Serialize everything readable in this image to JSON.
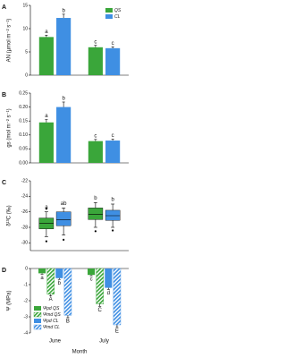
{
  "chart_data": [
    {
      "type": "bar",
      "panel": "A",
      "ylabel": "AN (µmol m⁻² s⁻¹)",
      "categories": [
        "June",
        "July"
      ],
      "ylim": [
        0,
        15
      ],
      "yticks": [
        0,
        5,
        10,
        15
      ],
      "legend": "upper right",
      "series": [
        {
          "name": "QS",
          "color": "#3aa63a",
          "values": [
            8.2,
            6.0
          ],
          "errors": [
            0.4,
            0.4
          ],
          "letters": [
            "a",
            "c"
          ]
        },
        {
          "name": "CL",
          "color": "#3f8fe3",
          "values": [
            12.3,
            5.8
          ],
          "errors": [
            0.8,
            0.3
          ],
          "letters": [
            "b",
            "c"
          ]
        }
      ]
    },
    {
      "type": "bar",
      "panel": "B",
      "ylabel": "gs (mol m⁻² s⁻¹)",
      "categories": [
        "June",
        "July"
      ],
      "ylim": [
        0,
        0.25
      ],
      "yticks": [
        {
          "value": 0,
          "label": "0.00"
        },
        0.05,
        {
          "value": 0.1,
          "label": "0.10"
        },
        0.15,
        {
          "value": 0.2,
          "label": "0.20"
        },
        0.25
      ],
      "series": [
        {
          "name": "QS",
          "color": "#3aa63a",
          "values": [
            0.145,
            0.078
          ],
          "errors": [
            0.01,
            0.006
          ],
          "letters": [
            "a",
            "c"
          ]
        },
        {
          "name": "CL",
          "color": "#3f8fe3",
          "values": [
            0.2,
            0.08
          ],
          "errors": [
            0.018,
            0.005
          ],
          "letters": [
            "b",
            "c"
          ]
        }
      ]
    },
    {
      "type": "box",
      "panel": "C",
      "ylabel": "δ¹³C (‰)",
      "categories": [
        "June",
        "July"
      ],
      "ylim": [
        -31,
        -22
      ],
      "yticks": [
        -30,
        -28,
        -26,
        -24,
        -22
      ],
      "series": [
        {
          "name": "QS",
          "color": "#3aa63a",
          "min": [
            -29.2,
            -28.0
          ],
          "q1": [
            -28.2,
            -27.0
          ],
          "median": [
            -27.5,
            -26.3
          ],
          "q3": [
            -26.8,
            -25.5
          ],
          "max": [
            -26.0,
            -24.8
          ],
          "outliers": [
            [
              -29.8,
              -25.6
            ],
            [
              -28.5
            ]
          ],
          "letters": [
            "a",
            "b"
          ]
        },
        {
          "name": "CL",
          "color": "#3f8fe3",
          "min": [
            -29.0,
            -28.0
          ],
          "q1": [
            -27.8,
            -27.1
          ],
          "median": [
            -27.0,
            -26.5
          ],
          "q3": [
            -26.0,
            -25.8
          ],
          "max": [
            -25.5,
            -25.0
          ],
          "outliers": [
            [
              -29.6
            ],
            [
              -28.4
            ]
          ],
          "letters": [
            "ab",
            "b"
          ]
        }
      ]
    },
    {
      "type": "bar",
      "panel": "D",
      "ylabel": "Ψ (MPa)",
      "xlabel": "Month",
      "categories": [
        "June",
        "July"
      ],
      "ylim": [
        -4,
        0
      ],
      "yticks": [
        -4,
        -3,
        -2,
        -1,
        0
      ],
      "legend": "lower left",
      "series": [
        {
          "name": "Ψpd QS",
          "color": "#3aa63a",
          "hatch": false,
          "values": [
            -0.3,
            -0.4
          ],
          "errors": [
            0.05,
            0.05
          ],
          "letters": [
            "a",
            "c"
          ]
        },
        {
          "name": "Ψmd QS",
          "color": "#3aa63a",
          "hatch": true,
          "values": [
            -1.6,
            -2.2
          ],
          "errors": [
            0.1,
            0.15
          ],
          "letters": [
            "A",
            "C"
          ]
        },
        {
          "name": "Ψpd CL",
          "color": "#3f8fe3",
          "hatch": false,
          "values": [
            -0.6,
            -1.2
          ],
          "errors": [
            0.08,
            0.1
          ],
          "letters": [
            "b",
            "d"
          ]
        },
        {
          "name": "Ψmd CL",
          "color": "#3f8fe3",
          "hatch": true,
          "values": [
            -2.9,
            -3.5
          ],
          "errors": [
            0.15,
            0.15
          ],
          "letters": [
            "B",
            "E"
          ]
        }
      ]
    }
  ]
}
